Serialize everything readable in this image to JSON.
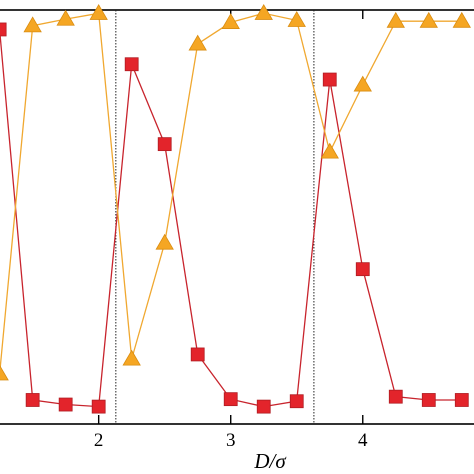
{
  "chart_data": {
    "type": "line",
    "title": "",
    "xlabel": "D/σ",
    "ylabel": "",
    "xlim": [
      1.23,
      4.85
    ],
    "ylim": [
      0,
      1
    ],
    "grid": false,
    "legend": "none",
    "x_ticks": [
      {
        "value": 2,
        "label": "2"
      },
      {
        "value": 3,
        "label": "3"
      },
      {
        "value": 4,
        "label": "4"
      }
    ],
    "vertical_lines": [
      2.13,
      3.63
    ],
    "series": [
      {
        "marker": "square",
        "color": "#e3242b",
        "line_color": "#c8242d",
        "points": [
          {
            "x": 1.25,
            "y": 0.953
          },
          {
            "x": 1.5,
            "y": 0.058
          },
          {
            "x": 1.75,
            "y": 0.047
          },
          {
            "x": 2.0,
            "y": 0.042
          },
          {
            "x": 2.25,
            "y": 0.869
          },
          {
            "x": 2.5,
            "y": 0.676
          },
          {
            "x": 2.75,
            "y": 0.168
          },
          {
            "x": 3.0,
            "y": 0.06
          },
          {
            "x": 3.25,
            "y": 0.042
          },
          {
            "x": 3.5,
            "y": 0.055
          },
          {
            "x": 3.75,
            "y": 0.832
          },
          {
            "x": 4.0,
            "y": 0.374
          },
          {
            "x": 4.25,
            "y": 0.066
          },
          {
            "x": 4.5,
            "y": 0.058
          },
          {
            "x": 4.75,
            "y": 0.058
          }
        ]
      },
      {
        "marker": "triangle",
        "color": "#f5a623",
        "line_color": "#f0a830",
        "points": [
          {
            "x": 1.25,
            "y": 0.121
          },
          {
            "x": 1.5,
            "y": 0.962
          },
          {
            "x": 1.75,
            "y": 0.978
          },
          {
            "x": 2.0,
            "y": 0.992
          },
          {
            "x": 2.25,
            "y": 0.157
          },
          {
            "x": 2.5,
            "y": 0.437
          },
          {
            "x": 2.75,
            "y": 0.918
          },
          {
            "x": 3.0,
            "y": 0.97
          },
          {
            "x": 3.25,
            "y": 0.992
          },
          {
            "x": 3.5,
            "y": 0.975
          },
          {
            "x": 3.75,
            "y": 0.657
          },
          {
            "x": 4.0,
            "y": 0.819
          },
          {
            "x": 4.25,
            "y": 0.973
          },
          {
            "x": 4.5,
            "y": 0.973
          },
          {
            "x": 4.75,
            "y": 0.973
          }
        ]
      }
    ]
  }
}
